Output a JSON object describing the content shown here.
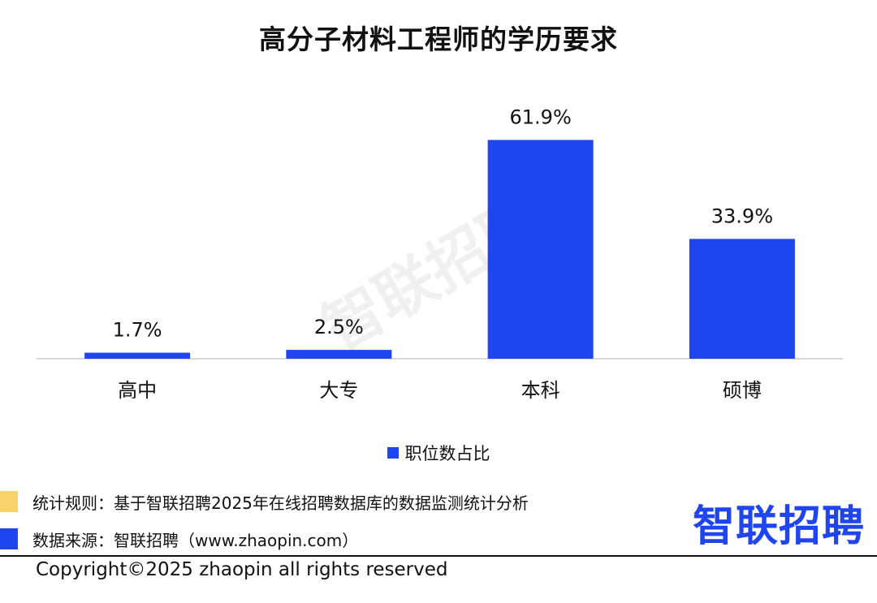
{
  "title": "高分子材料工程师的学历要求",
  "chart_data": {
    "type": "bar",
    "title": "高分子材料工程师的学历要求",
    "categories": [
      "高中",
      "大专",
      "本科",
      "硕博"
    ],
    "series": [
      {
        "name": "职位数占比",
        "values": [
          1.7,
          2.5,
          61.9,
          33.9
        ]
      }
    ],
    "data_labels": [
      "1.7%",
      "2.5%",
      "61.9%",
      "33.9%"
    ],
    "unit": "%",
    "ylim": [
      0,
      62
    ],
    "grid": false,
    "legend_position": "bottom",
    "bar_color": "#1f45ee"
  },
  "legend": {
    "label": "职位数占比"
  },
  "watermark": "智联招聘",
  "footnotes": {
    "rule_text": "统计规则：基于智联招聘2025年在线招聘数据库的数据监测统计分析",
    "source_text": "数据来源：智联招聘（www.zhaopin.com）",
    "rule_marker_color": "#f8d36a",
    "source_marker_color": "#1f45ee"
  },
  "logo": {
    "text": "智联招聘",
    "color": "#1f45ee"
  },
  "copyright": "Copyright©2025 zhaopin all rights reserved",
  "colors": {
    "accent": "#1f45ee",
    "text": "#111111",
    "axis": "#cccccc"
  }
}
